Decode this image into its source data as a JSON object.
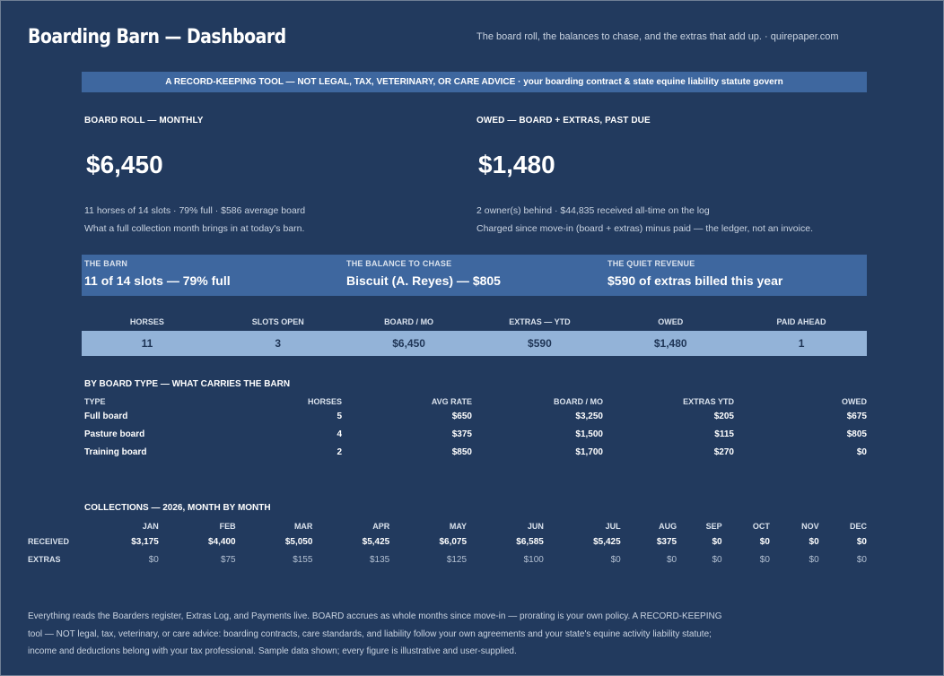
{
  "header": {
    "title": "Boarding Barn — Dashboard",
    "tagline": "The board roll, the balances to chase, and the extras that add up.  ·  quirepaper.com"
  },
  "banner": "A RECORD-KEEPING TOOL — NOT LEGAL, TAX, VETERINARY, OR CARE ADVICE  ·  your boarding contract & state equine liability statute govern",
  "board_roll": {
    "label": "BOARD ROLL — MONTHLY",
    "value": "$6,450",
    "line1": "11 horses of 14 slots  ·  79% full  ·  $586 average board",
    "line2": "What a full collection month brings in at today's barn."
  },
  "owed": {
    "label": "OWED — BOARD + EXTRAS, PAST DUE",
    "value": "$1,480",
    "line1": "2 owner(s) behind  ·  $44,835 received all-time on the log",
    "line2": "Charged since move-in (board + extras) minus paid — the ledger, not an invoice."
  },
  "cards": [
    {
      "key": "THE BARN",
      "value": "11 of 14 slots — 79% full"
    },
    {
      "key": "THE BALANCE TO CHASE",
      "value": "Biscuit (A. Reyes) — $805"
    },
    {
      "key": "THE QUIET REVENUE",
      "value": "$590 of extras billed this year"
    }
  ],
  "kpis": {
    "headers": [
      "HORSES",
      "SLOTS OPEN",
      "BOARD / MO",
      "EXTRAS — YTD",
      "OWED",
      "PAID AHEAD"
    ],
    "values": [
      "11",
      "3",
      "$6,450",
      "$590",
      "$1,480",
      "1"
    ]
  },
  "board_type": {
    "title": "BY BOARD TYPE — WHAT CARRIES THE BARN",
    "headers": [
      "TYPE",
      "HORSES",
      "AVG RATE",
      "BOARD / MO",
      "EXTRAS YTD",
      "OWED"
    ],
    "rows": [
      [
        "Full board",
        "5",
        "$650",
        "$3,250",
        "$205",
        "$675"
      ],
      [
        "Pasture board",
        "4",
        "$375",
        "$1,500",
        "$115",
        "$805"
      ],
      [
        "Training board",
        "2",
        "$850",
        "$1,700",
        "$270",
        "$0"
      ]
    ]
  },
  "collections": {
    "title": "COLLECTIONS — 2026, MONTH BY MONTH",
    "months": [
      "JAN",
      "FEB",
      "MAR",
      "APR",
      "MAY",
      "JUN",
      "JUL",
      "AUG",
      "SEP",
      "OCT",
      "NOV",
      "DEC"
    ],
    "received_label": "RECEIVED",
    "received": [
      "$3,175",
      "$4,400",
      "$5,050",
      "$5,425",
      "$6,075",
      "$6,585",
      "$5,425",
      "$375",
      "$0",
      "$0",
      "$0",
      "$0"
    ],
    "extras_label": "EXTRAS",
    "extras": [
      "$0",
      "$75",
      "$155",
      "$135",
      "$125",
      "$100",
      "$0",
      "$0",
      "$0",
      "$0",
      "$0",
      "$0"
    ]
  },
  "footer": "Everything reads the Boarders register, Extras Log, and Payments live. BOARD accrues as whole months since move-in — prorating is your own policy. A RECORD-KEEPING tool — NOT legal, tax, veterinary, or care advice: boarding contracts, care standards, and liability follow your own agreements and your state's equine activity liability statute; income and deductions belong with your tax professional. Sample data shown; every figure is illustrative and user-supplied."
}
